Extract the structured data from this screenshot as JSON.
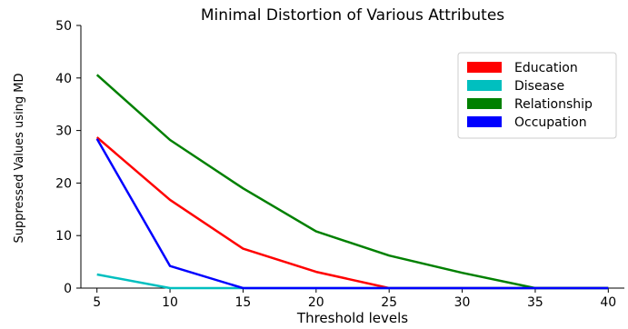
{
  "chart_data": {
    "type": "line",
    "title": "Minimal Distortion of Various Attributes",
    "xlabel": "Threshold levels",
    "ylabel": "Suppressed Values using MD",
    "x_ticks": [
      5,
      10,
      15,
      20,
      25,
      30,
      35,
      40
    ],
    "y_ticks": [
      0,
      10,
      20,
      30,
      40,
      50
    ],
    "xlim": [
      3.9,
      41.1
    ],
    "ylim": [
      0,
      50
    ],
    "grid": false,
    "legend_position": "upper right",
    "series": [
      {
        "name": "Education",
        "color": "#ff0000",
        "x": [
          5,
          10,
          15,
          20,
          25,
          30,
          35,
          40
        ],
        "values": [
          28.7,
          16.8,
          7.5,
          3.1,
          0,
          0,
          0,
          0
        ]
      },
      {
        "name": "Disease",
        "color": "#00bfbf",
        "x": [
          5,
          10,
          15,
          20,
          25,
          30,
          35,
          40
        ],
        "values": [
          2.6,
          0,
          0,
          0,
          0,
          0,
          0,
          0
        ]
      },
      {
        "name": "Relationship",
        "color": "#008000",
        "x": [
          5,
          10,
          15,
          20,
          25,
          30,
          35,
          40
        ],
        "values": [
          40.6,
          28.2,
          19.0,
          10.8,
          6.2,
          2.9,
          0,
          0
        ]
      },
      {
        "name": "Occupation",
        "color": "#0000ff",
        "x": [
          5,
          10,
          15,
          20,
          25,
          30,
          35,
          40
        ],
        "values": [
          28.4,
          4.2,
          0,
          0,
          0,
          0,
          0,
          0
        ]
      }
    ]
  }
}
